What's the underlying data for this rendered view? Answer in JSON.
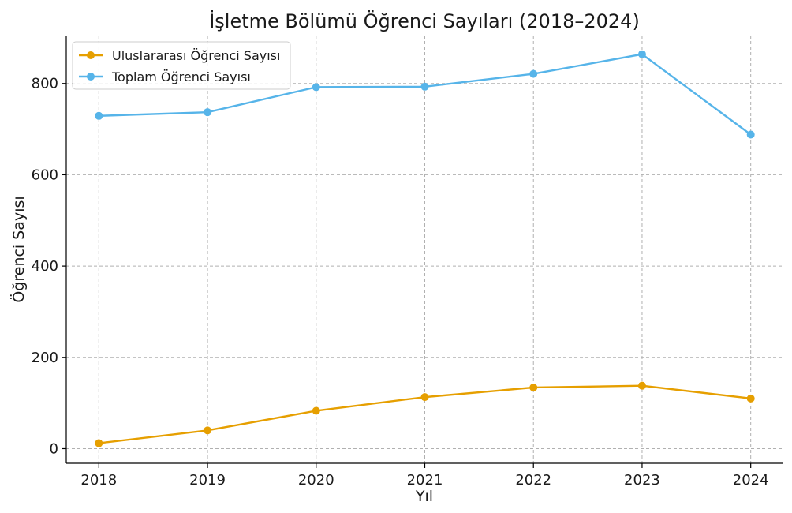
{
  "chart_data": {
    "type": "line",
    "title": "İşletme Bölümü Öğrenci Sayıları (2018–2024)",
    "xlabel": "Yıl",
    "ylabel": "Öğrenci Sayısı",
    "x": [
      "2018",
      "2019",
      "2020",
      "2021",
      "2022",
      "2023",
      "2024"
    ],
    "xlim": [
      2017.7,
      2024.3
    ],
    "ylim": [
      -32,
      905
    ],
    "yticks": [
      0,
      200,
      400,
      600,
      800
    ],
    "grid": true,
    "legend_position": "top-left",
    "series": [
      {
        "name": "Uluslararası Öğrenci Sayısı",
        "color": "#E69F00",
        "values": [
          12,
          40,
          83,
          113,
          134,
          138,
          110
        ]
      },
      {
        "name": "Toplam Öğrenci Sayısı",
        "color": "#56B4E9",
        "values": [
          729,
          737,
          792,
          793,
          821,
          864,
          688
        ]
      }
    ]
  }
}
